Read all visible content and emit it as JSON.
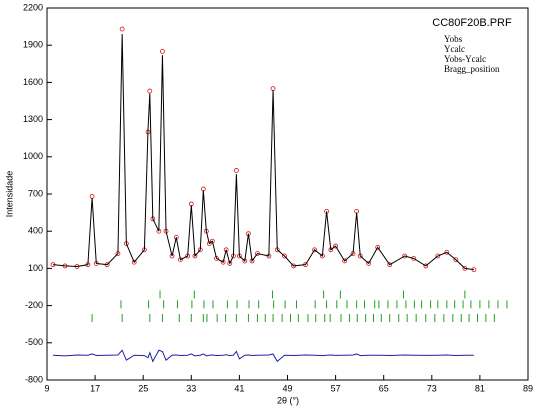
{
  "chart_data": {
    "type": "rietveld",
    "title": "CC80F20B.PRF",
    "x_label": "2θ (°)",
    "y_label": "Intensidade",
    "xlim": [
      9,
      89
    ],
    "xticks": [
      9,
      17,
      25,
      33,
      41,
      49,
      57,
      65,
      73,
      81,
      89
    ],
    "ylim": [
      -800,
      2200
    ],
    "yticks": [
      -800,
      -500,
      -200,
      100,
      400,
      700,
      1000,
      1300,
      1600,
      1900,
      2200
    ],
    "x": [
      10,
      12,
      14,
      15.8,
      16.5,
      17.2,
      19,
      20.8,
      21.5,
      22.2,
      23.5,
      25.2,
      25.8,
      26.1,
      26.6,
      27.6,
      28.2,
      28.8,
      29.8,
      30.5,
      31.2,
      32.4,
      33,
      33.6,
      34.5,
      35,
      35.5,
      36,
      36.5,
      37.2,
      38.3,
      38.8,
      39.4,
      40,
      40.5,
      41,
      41.9,
      42.5,
      43.1,
      44,
      45.9,
      46.6,
      47.3,
      48.5,
      50,
      52,
      53.5,
      54.8,
      55.5,
      56.2,
      57,
      58.5,
      59.9,
      60.5,
      61.1,
      62.5,
      64,
      66,
      68.5,
      70,
      72,
      74,
      75.5,
      77,
      78.5,
      80
    ],
    "series": [
      {
        "name": "Yobs",
        "color": "#e01010",
        "style": "points",
        "values": [
          130,
          120,
          115,
          130,
          680,
          140,
          130,
          220,
          2030,
          300,
          150,
          250,
          1200,
          1530,
          500,
          400,
          1850,
          400,
          200,
          350,
          170,
          200,
          620,
          200,
          250,
          740,
          400,
          300,
          320,
          180,
          150,
          250,
          140,
          200,
          890,
          200,
          160,
          380,
          160,
          220,
          200,
          1550,
          250,
          200,
          120,
          130,
          250,
          200,
          560,
          250,
          280,
          160,
          220,
          560,
          200,
          140,
          270,
          130,
          200,
          180,
          120,
          200,
          230,
          170,
          100,
          90
        ]
      },
      {
        "name": "Ycalc",
        "color": "#000000",
        "style": "line",
        "values": [
          130,
          120,
          115,
          130,
          670,
          140,
          130,
          220,
          1990,
          300,
          150,
          250,
          1220,
          1510,
          500,
          400,
          1820,
          400,
          200,
          350,
          170,
          200,
          610,
          200,
          250,
          730,
          400,
          300,
          320,
          180,
          150,
          250,
          140,
          200,
          860,
          200,
          160,
          380,
          160,
          220,
          200,
          1540,
          250,
          200,
          120,
          130,
          250,
          200,
          560,
          250,
          280,
          160,
          220,
          550,
          200,
          140,
          270,
          130,
          200,
          180,
          120,
          200,
          230,
          170,
          100,
          90
        ]
      },
      {
        "name": "Yobs-Ycalc",
        "color": "#2020a0",
        "style": "line",
        "values": [
          -600,
          -605,
          -598,
          -600,
          -590,
          -602,
          -600,
          -598,
          -560,
          -640,
          -600,
          -603,
          -620,
          -580,
          -650,
          -560,
          -570,
          -640,
          -600,
          -598,
          -602,
          -600,
          -590,
          -605,
          -600,
          -590,
          -605,
          -600,
          -598,
          -602,
          -600,
          -596,
          -603,
          -600,
          -570,
          -630,
          -600,
          -598,
          -602,
          -600,
          -598,
          -590,
          -650,
          -600,
          -602,
          -598,
          -600,
          -603,
          -600,
          -598,
          -601,
          -600,
          -598,
          -590,
          -603,
          -600,
          -600,
          -602,
          -598,
          -600,
          -601,
          -600,
          -598,
          -602,
          -600,
          -600
        ]
      },
      {
        "name": "Bragg_position",
        "color": "#20a020",
        "style": "ticks",
        "rows": [
          {
            "level": -110,
            "positions": [
              27.8,
              33.5,
              46.5,
              55,
              57.8,
              68.3,
              78.5
            ]
          },
          {
            "level": -190,
            "positions": [
              21.3,
              25.9,
              28.4,
              30.7,
              33.1,
              35.1,
              36.6,
              39,
              40.6,
              42.6,
              44.2,
              46.7,
              48.6,
              50.5,
              53.6,
              55.5,
              57.2,
              58.9,
              60.5,
              61.8,
              63.5,
              64.2,
              65.7,
              67.2,
              68.7,
              70.1,
              71.3,
              72.8,
              74,
              75.5,
              76.8,
              78.2,
              79.5,
              81,
              82.5,
              84,
              85.5
            ]
          },
          {
            "level": -300,
            "positions": [
              16.5,
              21.5,
              26.1,
              28.2,
              31,
              33,
              35,
              35.6,
              37.3,
              38.7,
              40.5,
              42.5,
              44,
              45.3,
              46.6,
              48.1,
              49.5,
              50.8,
              52.4,
              53.7,
              55.2,
              56.1,
              57.9,
              59.3,
              60.6,
              62,
              63.3,
              64.6,
              66,
              67.5,
              68.9,
              70.4,
              72,
              73.5,
              75,
              76.5,
              77.9,
              79.2,
              80.6,
              82,
              83.4
            ]
          }
        ]
      }
    ]
  }
}
